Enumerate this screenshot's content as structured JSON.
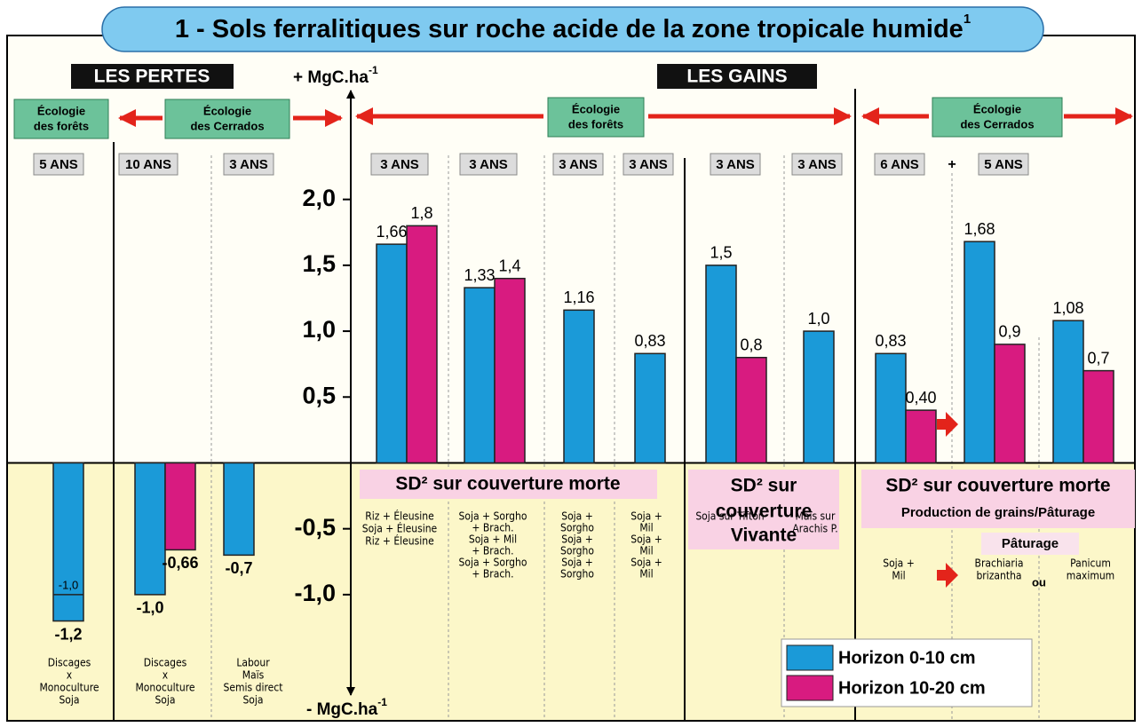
{
  "chart_data": {
    "type": "bar",
    "title": "1 - Sols ferralitiques sur roche acide de la zone tropicale humide",
    "title_note": "1",
    "ylabel_top": "+ MgC.ha",
    "ylabel_bottom": "- MgC.ha",
    "ylabel_exponent": "-1",
    "sections": [
      "LES PERTES",
      "LES GAINS"
    ],
    "ecologies": [
      [
        "Écologie",
        "des forêts"
      ],
      [
        "Écologie",
        "des Cerrados"
      ],
      [
        "Écologie",
        "des forêts"
      ],
      [
        "Écologie",
        "des Cerrados"
      ]
    ],
    "ylim": [
      -1.87,
      2.84
    ],
    "yticks": [
      {
        "value": 2,
        "label": "2,0"
      },
      {
        "value": 1.5,
        "label": "1,5"
      },
      {
        "value": 1,
        "label": "1,0"
      },
      {
        "value": 0.5,
        "label": "0,5"
      },
      {
        "value": -0.5,
        "label": "-0,5"
      },
      {
        "value": -1,
        "label": "-1,0"
      }
    ],
    "series": [
      {
        "name": "Horizon 0-10 cm",
        "color": "#1b9ad8"
      },
      {
        "name": "Horizon 10-20 cm",
        "color": "#d81b80"
      }
    ],
    "groups": [
      {
        "duration": "5 ANS",
        "notes": [
          "Discages",
          "x",
          "Monoculture",
          "Soja"
        ],
        "values": [
          -1.2,
          null
        ],
        "value_labels": [
          "-1,2",
          null
        ],
        "marker": -1,
        "marker_label": "-1,0"
      },
      {
        "duration": "10 ANS",
        "notes": [
          "Discages",
          "x",
          "Monoculture",
          "Soja"
        ],
        "values": [
          -1,
          -0.66
        ],
        "value_labels": [
          "-1,0",
          "-0,66"
        ]
      },
      {
        "duration": "3 ANS",
        "notes": [
          "Labour",
          "Maïs",
          "Semis direct",
          "Soja"
        ],
        "values": [
          -0.7,
          null
        ],
        "value_labels": [
          "-0,7",
          null
        ]
      },
      {
        "duration": "3 ANS",
        "notes": [
          "Riz + Éleusine",
          "Soja + Éleusine",
          "Riz + Éleusine"
        ],
        "values": [
          1.66,
          1.8
        ],
        "value_labels": [
          "1,66",
          "1,8"
        ]
      },
      {
        "duration": "3 ANS",
        "notes": [
          "Soja + Sorgho",
          "+ Brach.",
          "Soja + Mil",
          "+ Brach.",
          "Soja + Sorgho",
          "+ Brach."
        ],
        "values": [
          1.33,
          1.4
        ],
        "value_labels": [
          "1,33",
          "1,4"
        ]
      },
      {
        "duration": "3 ANS",
        "notes": [
          "Soja +",
          "Sorgho",
          "Soja +",
          "Sorgho",
          "Soja +",
          "Sorgho"
        ],
        "values": [
          1.16,
          null
        ],
        "value_labels": [
          "1,16",
          null
        ]
      },
      {
        "duration": "3 ANS",
        "notes": [
          "Soja +",
          "Mil",
          "Soja +",
          "Mil",
          "Soja +",
          "Mil"
        ],
        "values": [
          0.83,
          null
        ],
        "value_labels": [
          "0,83",
          null
        ]
      },
      {
        "duration": "3 ANS",
        "notes": [
          "Soja sur Tifton"
        ],
        "values": [
          1.5,
          0.8
        ],
        "value_labels": [
          "1,5",
          "0,8"
        ]
      },
      {
        "duration": "3 ANS",
        "notes": [
          "Maïs sur",
          "Arachis P."
        ],
        "values": [
          1,
          null
        ],
        "value_labels": [
          "1,0",
          null
        ]
      },
      {
        "duration": "6 ANS",
        "notes": [
          "Soja +",
          "Mil"
        ],
        "values": [
          0.83,
          0.4
        ],
        "value_labels": [
          "0,83",
          "0,40"
        ]
      },
      {
        "duration": "5 ANS",
        "notes": [
          "Brachiaria",
          "brizantha"
        ],
        "values": [
          1.68,
          0.9
        ],
        "value_labels": [
          "1,68",
          "0,9"
        ]
      },
      {
        "duration": null,
        "notes": [
          "Panicum",
          "maximum"
        ],
        "values": [
          1.08,
          0.7
        ],
        "value_labels": [
          "1,08",
          "0,7"
        ]
      }
    ],
    "panels": [
      [
        "SD² sur couverture morte"
      ],
      [
        "SD² sur",
        "couverture",
        "Vivante"
      ],
      [
        "SD² sur couverture morte",
        "Production de grains/Pâturage"
      ]
    ],
    "pasture": "Pâturage",
    "plus": "+",
    "or": "ou"
  }
}
